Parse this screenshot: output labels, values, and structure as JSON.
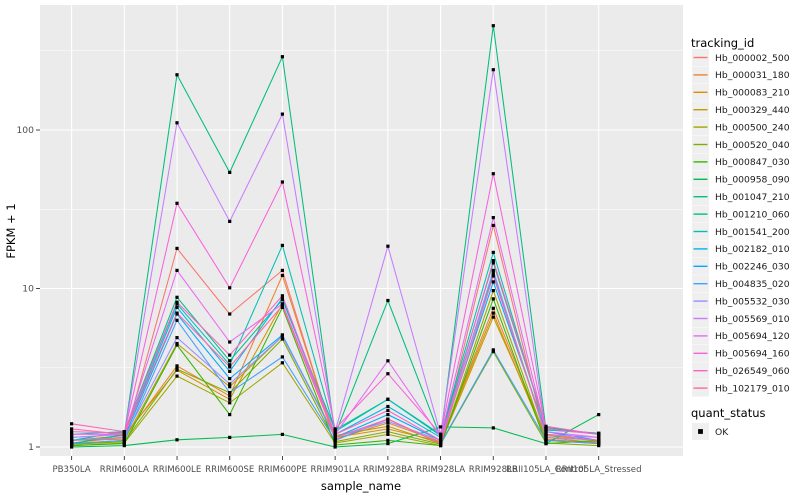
{
  "figure": {
    "background": "#FFFFFF",
    "panel_background": "#EBEBEB",
    "grid_color": "#FFFFFF",
    "tick_color": "#333333",
    "tick_label_color": "#4D4D4D",
    "axis_title_color": "#000000",
    "legend_title_color": "#000000",
    "legend_label_color": "#1A1A1A",
    "legend_key_background": "#EFEFEF",
    "point_color": "#000000"
  },
  "chart_data": {
    "type": "line",
    "title": "",
    "xlabel": "sample_name",
    "ylabel": "FPKM + 1",
    "y_scale": "log10",
    "y_ticks": [
      1,
      10,
      100
    ],
    "y_tick_labels": [
      "1",
      "10",
      "100"
    ],
    "ylim": [
      0.88,
      600
    ],
    "grid": "on",
    "legend_position": "right",
    "categories": [
      "PB350LA",
      "RRIM600LA",
      "RRIM600LE",
      "RRIM600SE",
      "RRIM600PE",
      "RRIM901LA",
      "RRIM928BA",
      "RRIM928LA",
      "RRIM928LB",
      "RRII105LA_Control",
      "RRII105LA_Stressed"
    ],
    "legend": {
      "color_title": "tracking_id",
      "shape_title": "quant_status",
      "shape_entries": [
        {
          "label": "OK",
          "shape": "square",
          "color": "#000000"
        }
      ]
    },
    "series": [
      {
        "name": "Hb_000002_500",
        "color": "#F8766D",
        "values": [
          1.1,
          1.12,
          17.9,
          6.9,
          13.0,
          1.1,
          1.5,
          1.05,
          25.0,
          1.12,
          1.05
        ]
      },
      {
        "name": "Hb_000031_180",
        "color": "#EA8331",
        "values": [
          1.06,
          1.15,
          3.25,
          2.1,
          12.1,
          1.12,
          1.42,
          1.08,
          7.5,
          1.15,
          1.06
        ]
      },
      {
        "name": "Hb_000083_210",
        "color": "#D89000",
        "values": [
          1.1,
          1.18,
          3.05,
          2.0,
          8.0,
          1.15,
          1.3,
          1.08,
          7.0,
          1.1,
          1.08
        ]
      },
      {
        "name": "Hb_000329_440",
        "color": "#C09B00",
        "values": [
          1.05,
          1.1,
          4.5,
          2.4,
          5.0,
          1.18,
          1.35,
          1.05,
          6.6,
          1.18,
          1.1
        ]
      },
      {
        "name": "Hb_000500_240",
        "color": "#A3A500",
        "values": [
          1.02,
          1.06,
          2.8,
          1.9,
          3.4,
          1.06,
          1.2,
          1.02,
          9.7,
          1.1,
          1.05
        ]
      },
      {
        "name": "Hb_000520_040",
        "color": "#7CAE00",
        "values": [
          1.04,
          1.08,
          3.1,
          2.2,
          4.8,
          1.08,
          1.25,
          1.04,
          4.0,
          1.06,
          1.02
        ]
      },
      {
        "name": "Hb_000847_030",
        "color": "#39B600",
        "values": [
          1.02,
          1.05,
          4.4,
          1.6,
          7.6,
          1.03,
          1.1,
          1.02,
          8.6,
          1.05,
          1.1
        ]
      },
      {
        "name": "Hb_000958_090",
        "color": "#00BB4E",
        "values": [
          1.0,
          1.02,
          1.11,
          1.15,
          1.2,
          1.0,
          1.05,
          1.34,
          1.32,
          1.05,
          1.6
        ]
      },
      {
        "name": "Hb_001047_210",
        "color": "#00C08B",
        "values": [
          1.1,
          1.25,
          8.8,
          3.5,
          8.5,
          1.28,
          2.0,
          1.18,
          14.5,
          1.33,
          1.2
        ]
      },
      {
        "name": "Hb_001210_060",
        "color": "#00BE7C",
        "values": [
          1.05,
          1.2,
          223.0,
          54.0,
          290.0,
          1.2,
          8.4,
          1.15,
          455.0,
          1.3,
          1.22
        ]
      },
      {
        "name": "Hb_001541_200",
        "color": "#00C0B4",
        "values": [
          1.2,
          1.25,
          8.0,
          3.3,
          18.7,
          1.25,
          2.0,
          1.2,
          16.9,
          1.28,
          1.22
        ]
      },
      {
        "name": "Hb_002182_010",
        "color": "#00B5EB",
        "values": [
          1.15,
          1.2,
          7.6,
          3.0,
          8.7,
          1.2,
          1.8,
          1.15,
          12.5,
          1.2,
          1.15
        ]
      },
      {
        "name": "Hb_002246_030",
        "color": "#00A9FF",
        "values": [
          1.1,
          1.15,
          6.9,
          2.7,
          5.1,
          1.15,
          1.6,
          1.1,
          11.0,
          1.25,
          1.1
        ]
      },
      {
        "name": "Hb_004835_020",
        "color": "#40A0FF",
        "values": [
          1.05,
          1.1,
          6.3,
          2.2,
          3.7,
          1.1,
          1.5,
          1.05,
          4.1,
          1.1,
          1.05
        ]
      },
      {
        "name": "Hb_005532_030",
        "color": "#9590FF",
        "values": [
          1.1,
          1.15,
          4.9,
          2.5,
          5.0,
          1.15,
          1.45,
          1.1,
          13.0,
          1.15,
          1.1
        ]
      },
      {
        "name": "Hb_005569_010",
        "color": "#C77CFF",
        "values": [
          1.15,
          1.2,
          111.0,
          26.5,
          126.0,
          1.25,
          18.5,
          1.2,
          240.0,
          1.2,
          1.15
        ]
      },
      {
        "name": "Hb_005694_120",
        "color": "#E76BF3",
        "values": [
          1.2,
          1.2,
          13.0,
          4.6,
          8.0,
          1.2,
          3.5,
          1.15,
          28.0,
          1.25,
          1.15
        ]
      },
      {
        "name": "Hb_005694_160",
        "color": "#FA62DB",
        "values": [
          1.25,
          1.22,
          34.5,
          10.1,
          47.0,
          1.3,
          2.9,
          1.2,
          53.0,
          1.3,
          1.2
        ]
      },
      {
        "name": "Hb_026549_060",
        "color": "#FF61C2",
        "values": [
          1.4,
          1.25,
          8.2,
          3.8,
          9.0,
          1.2,
          1.7,
          1.1,
          15.0,
          1.35,
          1.2
        ]
      },
      {
        "name": "Hb_102179_010",
        "color": "#FF689E",
        "values": [
          1.3,
          1.2,
          7.0,
          3.2,
          7.8,
          1.15,
          1.5,
          1.05,
          12.0,
          1.2,
          1.1
        ]
      }
    ]
  }
}
